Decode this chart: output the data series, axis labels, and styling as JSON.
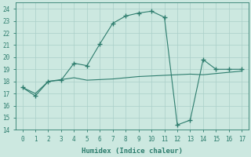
{
  "xlabel": "Humidex (Indice chaleur)",
  "x": [
    0,
    1,
    2,
    3,
    4,
    5,
    6,
    7,
    8,
    9,
    10,
    11,
    12,
    13,
    14,
    15,
    16,
    17
  ],
  "line1": [
    17.5,
    16.8,
    18.0,
    18.1,
    19.5,
    19.3,
    21.1,
    22.8,
    23.4,
    23.65,
    23.8,
    23.3,
    14.4,
    14.8,
    19.8,
    19.0,
    19.0,
    19.0
  ],
  "line2": [
    17.5,
    17.0,
    18.0,
    18.15,
    18.3,
    18.1,
    18.15,
    18.2,
    18.3,
    18.4,
    18.45,
    18.5,
    18.55,
    18.6,
    18.55,
    18.65,
    18.75,
    18.85
  ],
  "line_color": "#2e7d6e",
  "bg_color": "#cce8e0",
  "grid_color": "#aacfc8",
  "ylim": [
    14,
    24.5
  ],
  "xlim": [
    -0.5,
    17.5
  ],
  "yticks": [
    14,
    15,
    16,
    17,
    18,
    19,
    20,
    21,
    22,
    23,
    24
  ],
  "xticks": [
    0,
    1,
    2,
    3,
    4,
    5,
    6,
    7,
    8,
    9,
    10,
    11,
    12,
    13,
    14,
    15,
    16,
    17
  ]
}
